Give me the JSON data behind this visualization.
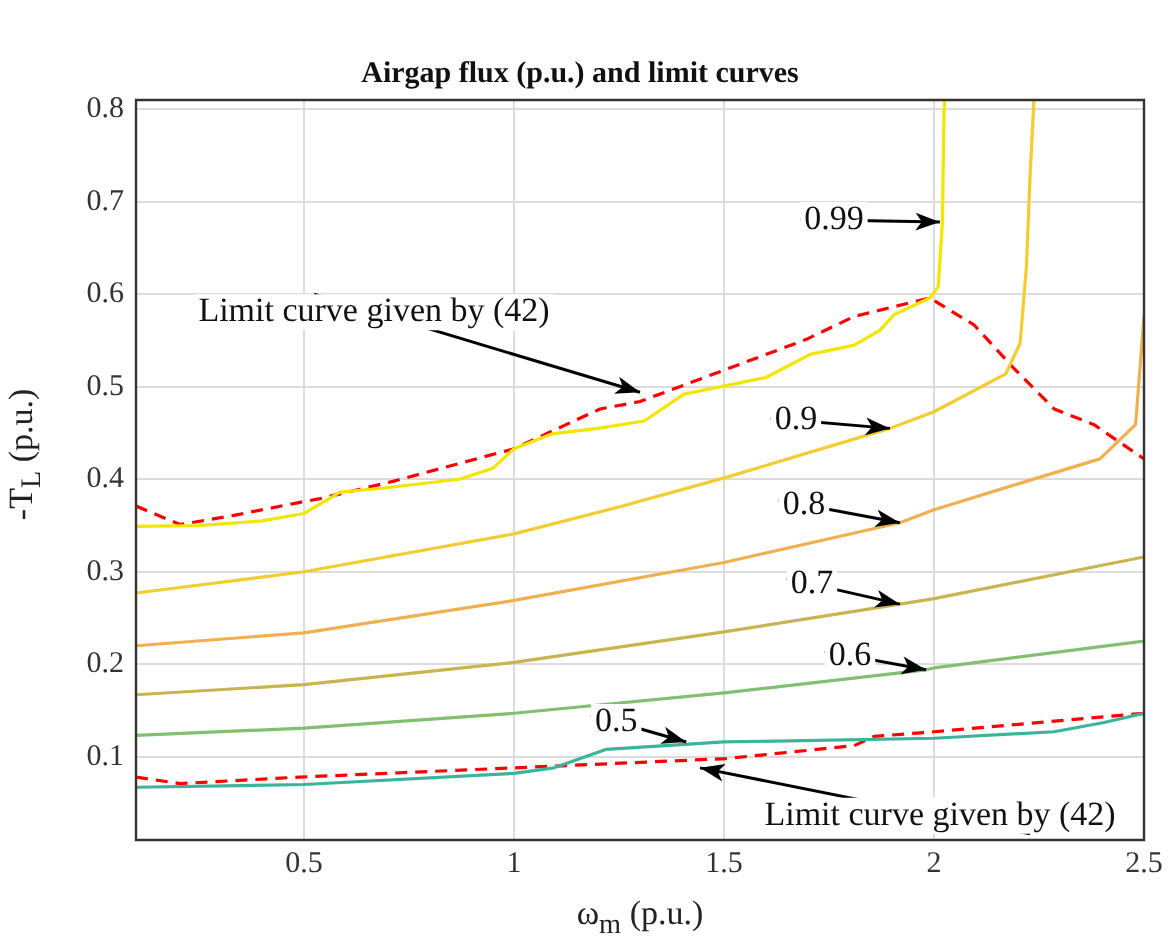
{
  "chart_data": {
    "type": "line",
    "title": "Airgap flux (p.u.) and limit curves",
    "xlabel": "ω$_{m}$ (p.u.)",
    "ylabel": "-T$_{L}$ (p.u.)",
    "xlim": [
      0.1,
      2.5
    ],
    "ylim": [
      0.01,
      0.81
    ],
    "xticks": [
      0.5,
      1,
      1.5,
      2,
      2.5
    ],
    "yticks": [
      0.1,
      0.2,
      0.3,
      0.4,
      0.5,
      0.6,
      0.7,
      0.8
    ],
    "grid": true,
    "legend": false,
    "marker": "none",
    "series": [
      {
        "color": "#f2e600",
        "line_style": "solid",
        "x": [
          0.1,
          0.25,
          0.4,
          0.5,
          0.586,
          0.68,
          0.87,
          0.95,
          1.0,
          1.09,
          1.2,
          1.31,
          1.405,
          1.6,
          1.705,
          1.81,
          1.871,
          1.905,
          1.99,
          2.01,
          2.02,
          2.024,
          2.025
        ],
        "values": [
          0.349,
          0.35,
          0.355,
          0.363,
          0.386,
          0.39,
          0.4,
          0.412,
          0.433,
          0.449,
          0.455,
          0.463,
          0.492,
          0.51,
          0.535,
          0.545,
          0.561,
          0.578,
          0.596,
          0.608,
          0.678,
          0.8,
          0.81
        ]
      },
      {
        "color": "#f2cc30",
        "line_style": "solid",
        "x": [
          0.1,
          0.5,
          1.0,
          1.25,
          1.505,
          1.895,
          2.0,
          2.171,
          2.205,
          2.22,
          2.229,
          2.238
        ],
        "values": [
          0.277,
          0.3,
          0.341,
          0.37,
          0.402,
          0.455,
          0.473,
          0.514,
          0.547,
          0.629,
          0.731,
          0.81
        ]
      },
      {
        "color": "#f0b050",
        "line_style": "solid",
        "x": [
          0.1,
          0.5,
          1.0,
          1.5,
          1.919,
          2.0,
          2.2,
          2.395,
          2.48,
          2.5
        ],
        "values": [
          0.22,
          0.234,
          0.269,
          0.31,
          0.353,
          0.367,
          0.395,
          0.422,
          0.459,
          0.576
        ]
      },
      {
        "color": "#c8b450",
        "line_style": "solid",
        "x": [
          0.1,
          0.5,
          1.0,
          1.5,
          1.919,
          2.0,
          2.5
        ],
        "values": [
          0.167,
          0.178,
          0.202,
          0.235,
          0.265,
          0.271,
          0.316
        ]
      },
      {
        "color": "#80c070",
        "line_style": "solid",
        "x": [
          0.1,
          0.5,
          1.0,
          1.5,
          1.981,
          2.0,
          2.5
        ],
        "values": [
          0.123,
          0.131,
          0.147,
          0.169,
          0.194,
          0.196,
          0.225
        ]
      },
      {
        "color": "#3cb49a",
        "line_style": "solid",
        "x": [
          0.1,
          0.5,
          1.0,
          1.095,
          1.22,
          1.5,
          2.0,
          2.286,
          2.405,
          2.5
        ],
        "values": [
          0.067,
          0.07,
          0.082,
          0.088,
          0.108,
          0.116,
          0.12,
          0.127,
          0.137,
          0.147
        ]
      },
      {
        "color": "#ff0000",
        "line_style": "dashed",
        "x": [
          0.1,
          0.205,
          0.333,
          0.49,
          0.538,
          0.714,
          1.0,
          1.205,
          1.3,
          1.695,
          1.81,
          1.99,
          2.095,
          2.19,
          2.286,
          2.381,
          2.5
        ],
        "values": [
          0.371,
          0.351,
          0.361,
          0.375,
          0.379,
          0.398,
          0.433,
          0.476,
          0.484,
          0.551,
          0.576,
          0.596,
          0.567,
          0.52,
          0.476,
          0.459,
          0.422
        ]
      },
      {
        "color": "#ff0000",
        "line_style": "dashed",
        "x": [
          0.1,
          0.205,
          0.49,
          1.0,
          1.505,
          1.81,
          1.857,
          2.0,
          2.5
        ],
        "values": [
          0.078,
          0.071,
          0.078,
          0.088,
          0.098,
          0.112,
          0.122,
          0.127,
          0.147
        ]
      }
    ],
    "annotations": [
      {
        "text": "0.99",
        "x": 2.014,
        "y": 0.678
      },
      {
        "text": "0.9",
        "x": 1.895,
        "y": 0.455
      },
      {
        "text": "0.8",
        "x": 1.919,
        "y": 0.353
      },
      {
        "text": "0.7",
        "x": 1.919,
        "y": 0.265
      },
      {
        "text": "0.6",
        "x": 1.981,
        "y": 0.194
      },
      {
        "text": "0.5",
        "x": 1.41,
        "y": 0.116
      },
      {
        "text": "Limit curve given by (42)",
        "x": 1.3,
        "y": 0.494
      },
      {
        "text": "Limit curve given by (42)",
        "x": 1.443,
        "y": 0.088
      }
    ]
  }
}
